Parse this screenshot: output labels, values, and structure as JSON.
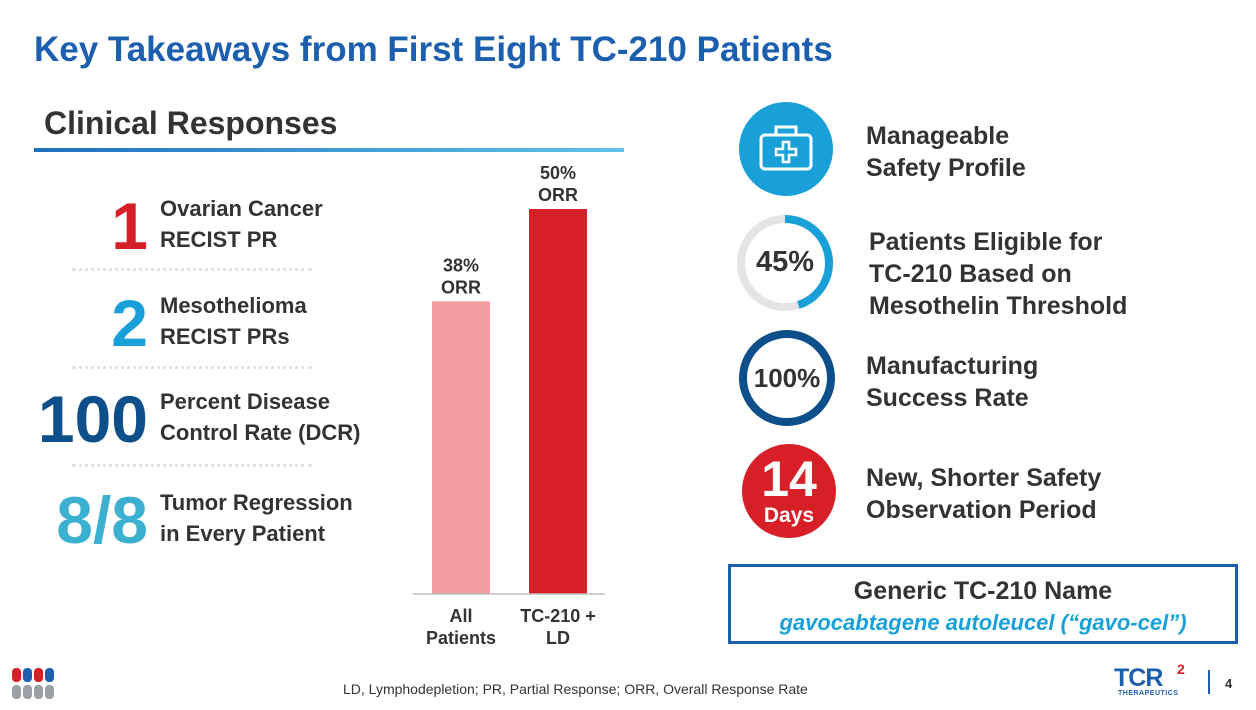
{
  "title": "Key Takeaways from First Eight TC-210 Patients",
  "clinical": {
    "heading": "Clinical Responses",
    "stats": [
      {
        "number": "1",
        "line1": "Ovarian Cancer",
        "line2": "RECIST PR",
        "color": "#d71f27"
      },
      {
        "number": "2",
        "line1": "Mesothelioma",
        "line2": "RECIST PRs",
        "color": "#1aa0d8"
      },
      {
        "number": "100",
        "line1": "Percent Disease",
        "line2": "Control Rate (DCR)",
        "color": "#0d4f8b"
      },
      {
        "number": "8/8",
        "line1": "Tumor Regression",
        "line2": "in Every Patient",
        "color": "#3bb0d0"
      }
    ]
  },
  "chart_data": {
    "type": "bar",
    "categories": [
      "All Patients",
      "TC-210 + LD"
    ],
    "category_lines": [
      [
        "All",
        "Patients"
      ],
      [
        "TC-210 +",
        "LD"
      ]
    ],
    "values": [
      38,
      50
    ],
    "data_labels": [
      [
        "38%",
        "ORR"
      ],
      [
        "50%",
        "ORR"
      ]
    ],
    "colors": [
      "#f29ea0",
      "#d71f27"
    ],
    "ylim": [
      0,
      50
    ],
    "grid": false,
    "title": "",
    "xlabel": "",
    "ylabel": ""
  },
  "highlights": [
    {
      "icon": "medical-kit-icon",
      "line1": "Manageable",
      "line2": "Safety Profile"
    },
    {
      "icon": "percent-ring-icon",
      "value_text": "45%",
      "fraction": 0.45,
      "line1": "Patients Eligible for",
      "line2": "TC-210 Based on",
      "line3": "Mesothelin Threshold"
    },
    {
      "icon": "full-ring-icon",
      "value_text": "100%",
      "fraction": 1.0,
      "line1": "Manufacturing",
      "line2": "Success Rate"
    },
    {
      "icon": "days-badge-icon",
      "big": "14",
      "small": "Days",
      "line1": "New, Shorter Safety",
      "line2": "Observation Period"
    }
  ],
  "name_box": {
    "title": "Generic TC-210 Name",
    "subtitle": "gavocabtagene autoleucel (“gavo-cel”)"
  },
  "footer": {
    "footnote": "LD, Lymphodepletion; PR, Partial Response; ORR, Overall Response Rate",
    "page": "4",
    "logo_text": "TCR",
    "logo_sup": "2",
    "logo_sub": "THERAPEUTICS"
  },
  "colors": {
    "accent_blue": "#1b5fae",
    "cyan": "#1aa0d8",
    "red": "#d71f27",
    "pink": "#f29ea0",
    "navy": "#0d4f8b"
  }
}
